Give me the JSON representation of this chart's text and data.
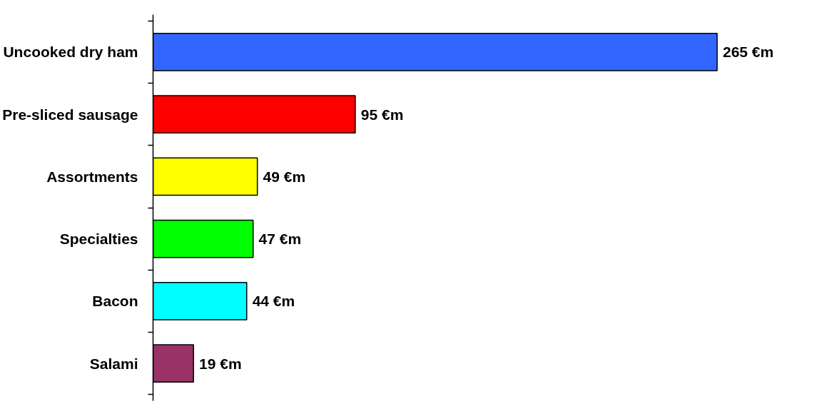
{
  "chart_data": {
    "type": "bar",
    "orientation": "horizontal",
    "categories": [
      "Uncooked dry ham",
      "Pre-sliced sausage",
      "Assortments",
      "Specialties",
      "Bacon",
      "Salami"
    ],
    "values": [
      265,
      95,
      49,
      47,
      44,
      19
    ],
    "colors": [
      "#3366ff",
      "#ff0000",
      "#ffff00",
      "#00ff00",
      "#00ffff",
      "#993366"
    ],
    "value_labels": [
      "265 €m",
      "95 €m",
      "49 €m",
      "47 €m",
      "44 €m",
      "19 €m"
    ],
    "grid": false
  }
}
